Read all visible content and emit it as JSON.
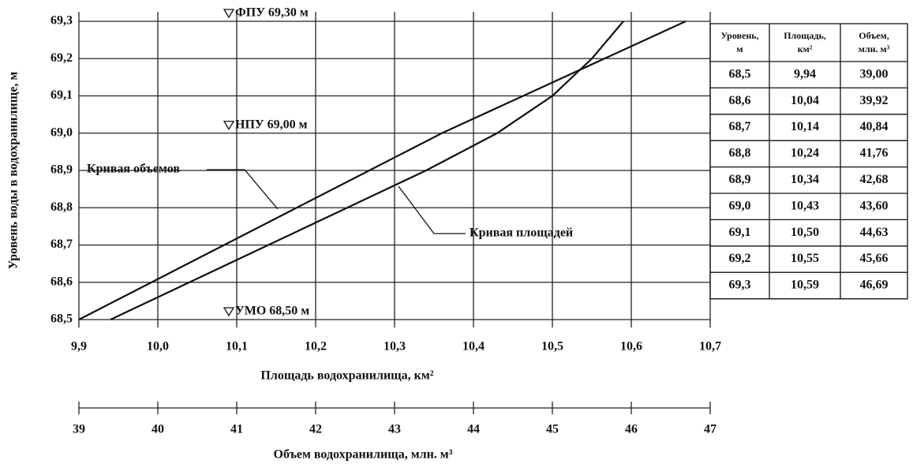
{
  "chart_data": {
    "type": "line",
    "xlabel": "Площадь водохранилища, км²",
    "x2label": "Объем водохранилища, млн. м³",
    "ylabel": "Уровень воды в водохранилище, м",
    "xlim": [
      9.9,
      10.7
    ],
    "xticks": [
      {
        "value": 9.9,
        "label": "9,9"
      },
      {
        "value": 10.0,
        "label": "10,0"
      },
      {
        "value": 10.1,
        "label": "10,1"
      },
      {
        "value": 10.2,
        "label": "10,2"
      },
      {
        "value": 10.3,
        "label": "10,3"
      },
      {
        "value": 10.4,
        "label": "10,4"
      },
      {
        "value": 10.5,
        "label": "10,5"
      },
      {
        "value": 10.6,
        "label": "10,6"
      },
      {
        "value": 10.7,
        "label": "10,7"
      }
    ],
    "x2lim": [
      39,
      47
    ],
    "x2ticks": [
      39,
      40,
      41,
      42,
      43,
      44,
      45,
      46,
      47
    ],
    "ylim": [
      68.5,
      69.3
    ],
    "yticks": [
      {
        "value": 68.5,
        "label": "68,5"
      },
      {
        "value": 68.6,
        "label": "68,6"
      },
      {
        "value": 68.7,
        "label": "68,7"
      },
      {
        "value": 68.8,
        "label": "68,8"
      },
      {
        "value": 68.9,
        "label": "68,9"
      },
      {
        "value": 69.0,
        "label": "69,0"
      },
      {
        "value": 69.1,
        "label": "69,1"
      },
      {
        "value": 69.2,
        "label": "69,2"
      },
      {
        "value": 69.3,
        "label": "69,3"
      }
    ],
    "grid": true,
    "series": [
      {
        "name": "Кривая площадей",
        "color": "#111111",
        "axis": "x",
        "x": [
          9.94,
          10.04,
          10.14,
          10.24,
          10.34,
          10.43,
          10.5,
          10.55,
          10.59
        ],
        "values": [
          68.5,
          68.6,
          68.7,
          68.8,
          68.9,
          69.0,
          69.1,
          69.2,
          69.3
        ]
      },
      {
        "name": "Кривая объемов",
        "color": "#111111",
        "axis": "x2",
        "x": [
          39.0,
          39.92,
          40.84,
          41.76,
          42.68,
          43.6,
          44.63,
          45.66,
          46.69
        ],
        "values": [
          68.5,
          68.6,
          68.7,
          68.8,
          68.9,
          69.0,
          69.1,
          69.2,
          69.3
        ]
      }
    ],
    "annotations": [
      {
        "label": "ФПУ 69,30 м",
        "y": 69.3
      },
      {
        "label": "НПУ 69,00 м",
        "y": 69.0
      },
      {
        "label": "УМО 68,50 м",
        "y": 68.5
      }
    ]
  },
  "table": {
    "columns": [
      [
        "Уровень,",
        "м"
      ],
      [
        "Площадь,",
        "км²"
      ],
      [
        "Объем,",
        "млн. м³"
      ]
    ],
    "rows": [
      [
        "68,5",
        "9,94",
        "39,00"
      ],
      [
        "68,6",
        "10,04",
        "39,92"
      ],
      [
        "68,7",
        "10,14",
        "40,84"
      ],
      [
        "68,8",
        "10,24",
        "41,76"
      ],
      [
        "68,9",
        "10,34",
        "42,68"
      ],
      [
        "69,0",
        "10,43",
        "43,60"
      ],
      [
        "69,1",
        "10,50",
        "44,63"
      ],
      [
        "69,2",
        "10,55",
        "45,66"
      ],
      [
        "69,3",
        "10,59",
        "46,69"
      ]
    ]
  }
}
